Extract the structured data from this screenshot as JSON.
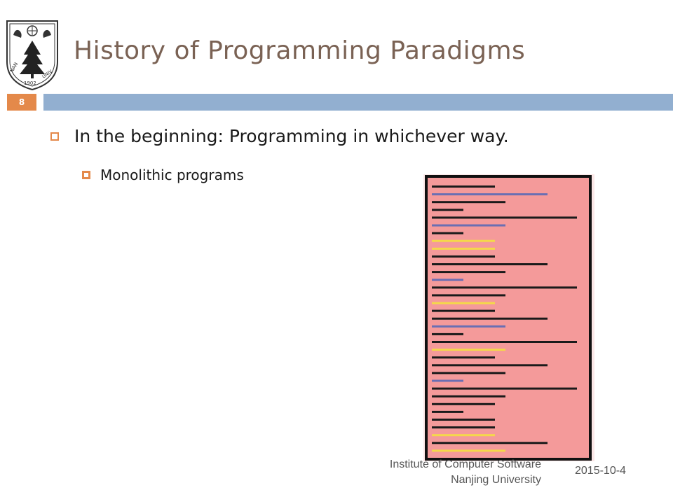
{
  "slide": {
    "number": "8",
    "title": "History of Programming Paradigms"
  },
  "bullets": {
    "level1": "In the beginning: Programming in whichever way.",
    "level2": "Monolithic programs"
  },
  "logo": {
    "name": "nanjing-university-emblem",
    "ring_text": "NANJING UNIVERSITY",
    "year": "1902"
  },
  "footer": {
    "institute_line1": "Institute of Computer Software",
    "institute_line2": "Nanjing University",
    "date": "2015-10-4"
  },
  "figure": {
    "name": "monolithic-program-illustration",
    "line_colors": {
      "code": "#1a1a1a",
      "blue": "#6a6fb3",
      "yellow": "#f4d84a",
      "background": "#f49a9a"
    }
  },
  "colors": {
    "accent_orange": "#e4894a",
    "band_blue": "#92afd0",
    "title": "#7a6254"
  }
}
